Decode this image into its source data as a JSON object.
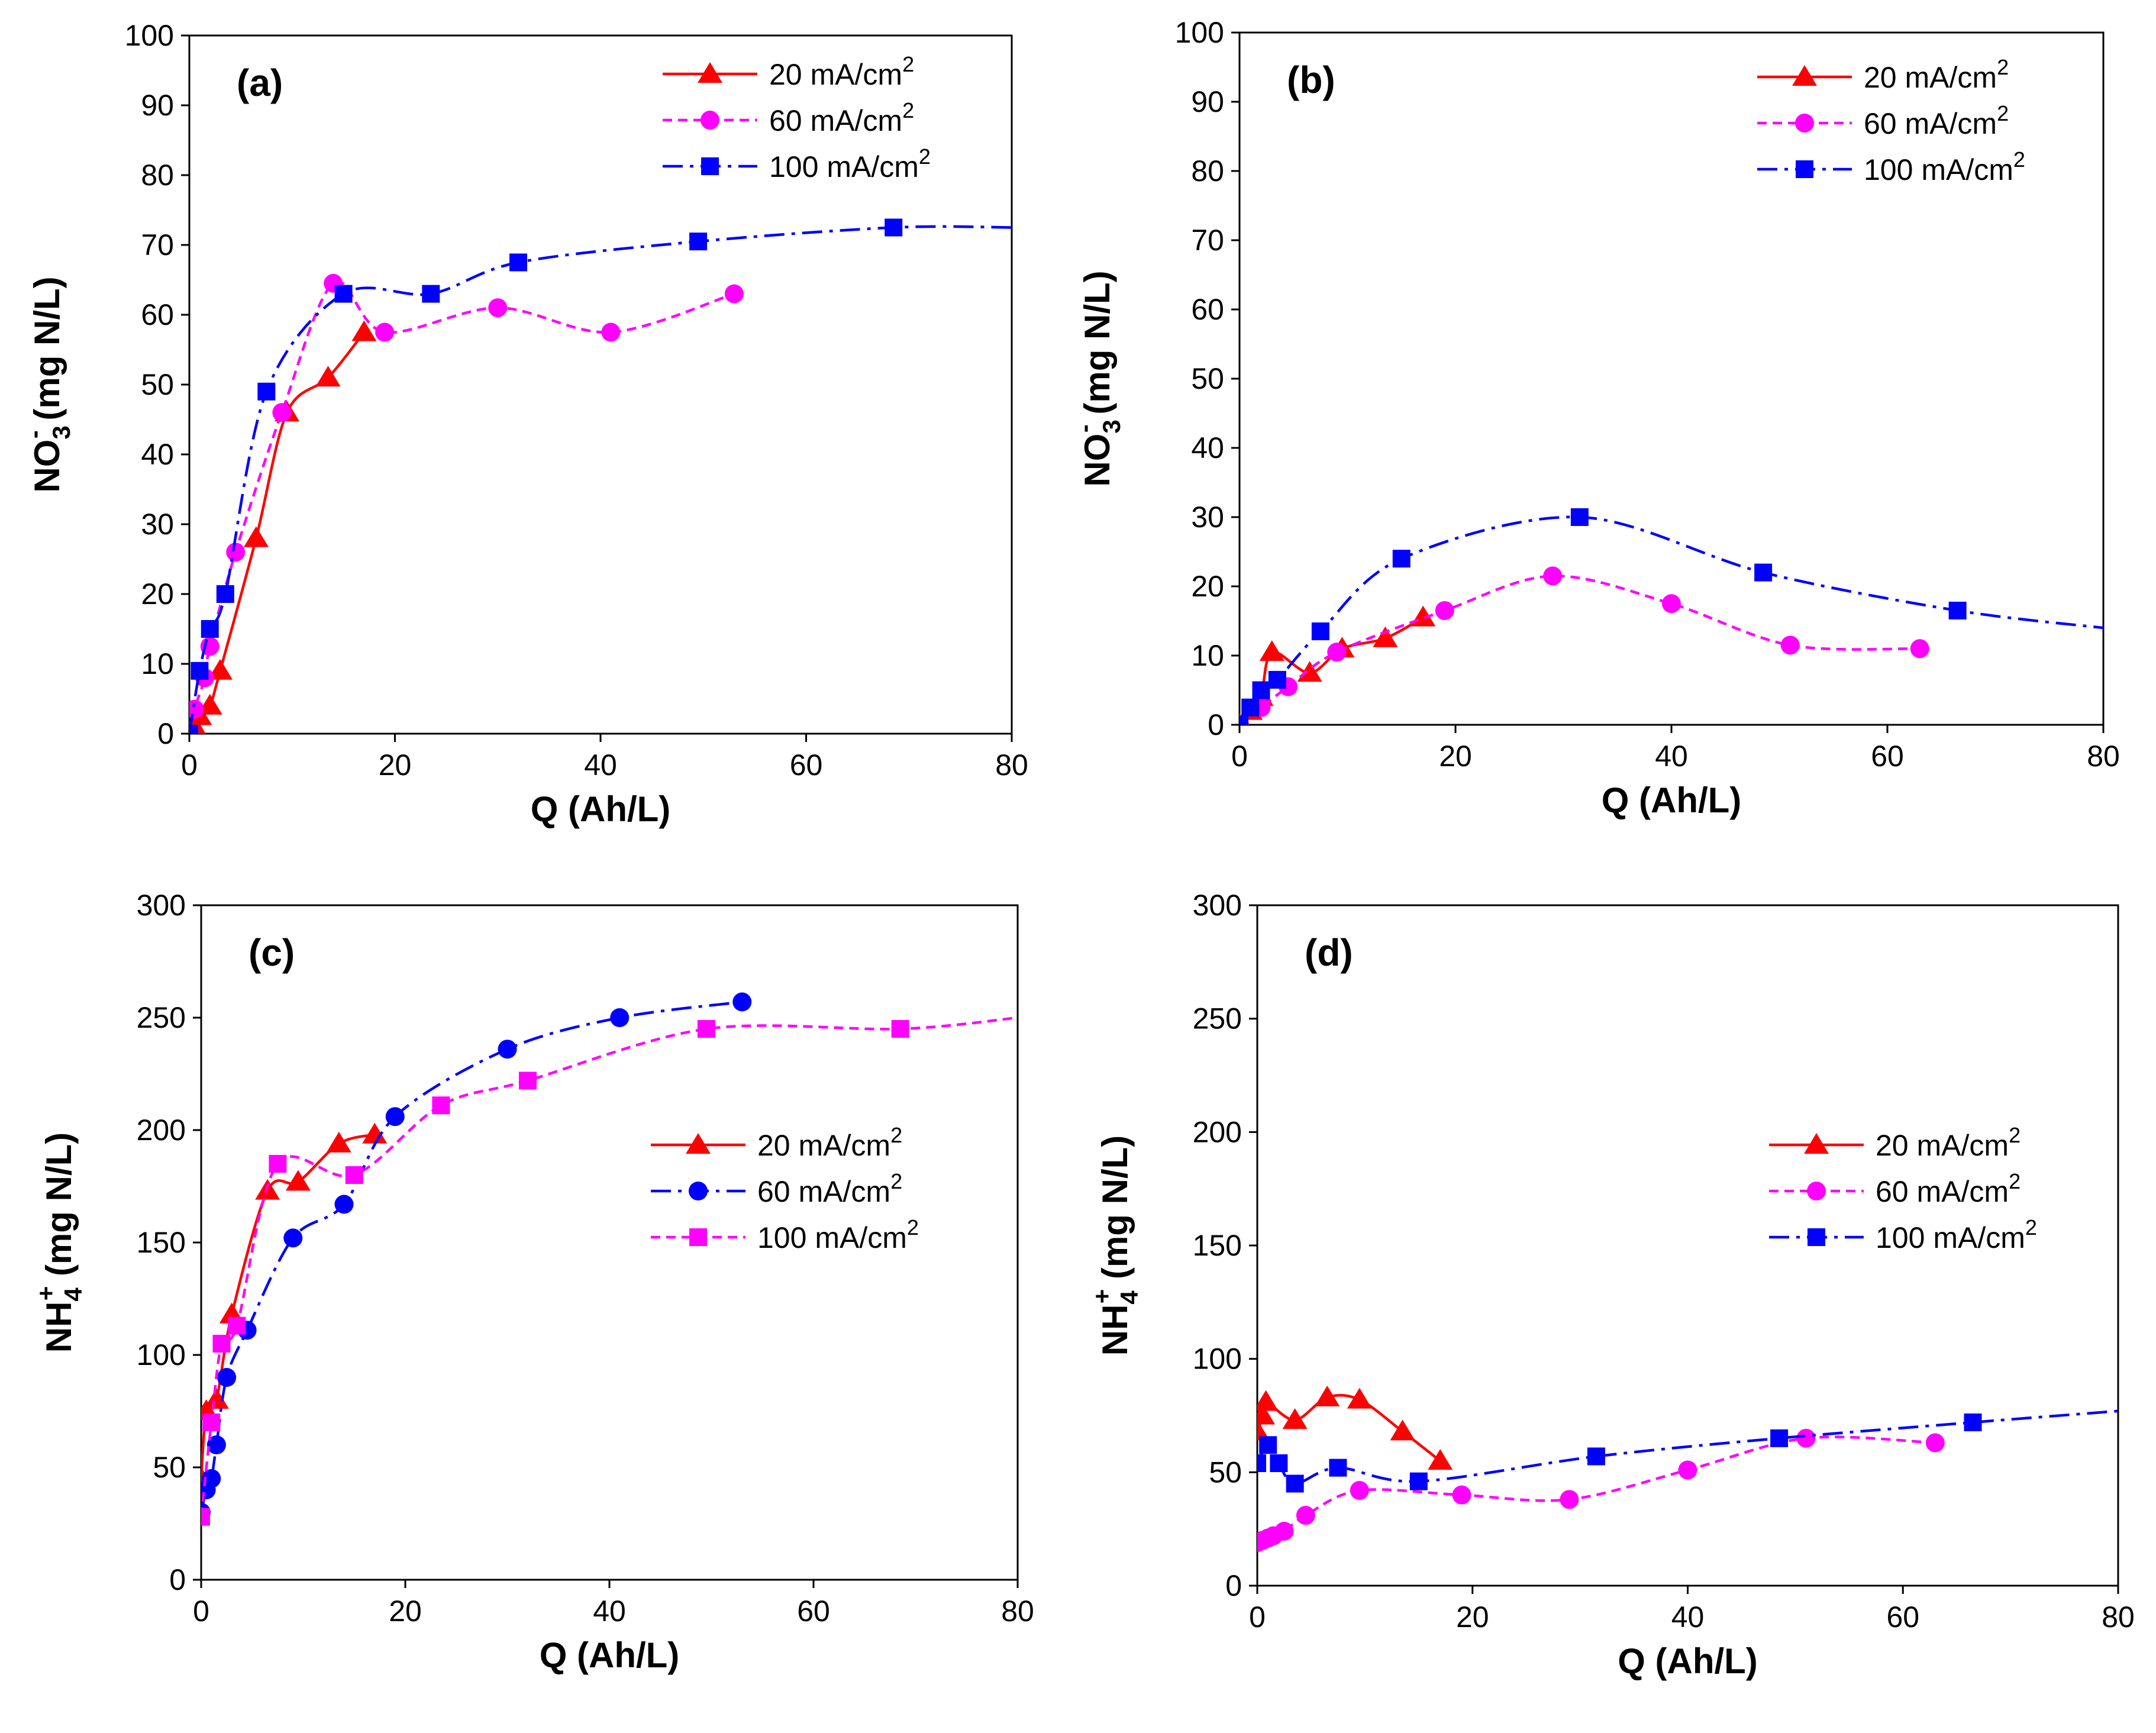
{
  "chart_data": [
    {
      "type": "line",
      "panel_label": "(a)",
      "xlabel": "Q (Ah/L)",
      "ylabel": {
        "base": "NO",
        "sub": "3",
        "sup": "-",
        "rest": " (mg N/L)"
      },
      "xlim": [
        0,
        80
      ],
      "ylim": [
        0,
        100
      ],
      "xticks": [
        0,
        20,
        40,
        60,
        80
      ],
      "yticks": [
        0,
        10,
        20,
        30,
        40,
        50,
        60,
        70,
        80,
        90,
        100
      ],
      "legend_position": "top-right",
      "series": [
        {
          "name": "20 mA/cm",
          "unit_sup": "2",
          "color": "#ff0000",
          "marker": "triangle",
          "dash": "solid",
          "x": [
            0,
            0.5,
            1.0,
            2.0,
            3.0,
            6.5,
            9.5,
            13.5,
            17.0
          ],
          "y": [
            0,
            1.0,
            2.5,
            4.0,
            9.0,
            28.0,
            46.0,
            51.0,
            57.5
          ]
        },
        {
          "name": "60 mA/cm",
          "unit_sup": "2",
          "color": "#ff00ff",
          "marker": "circle",
          "dash": "dash",
          "x": [
            0,
            0.5,
            1.5,
            2.0,
            4.5,
            9.0,
            14.0,
            19.0,
            30.0,
            41.0,
            53.0
          ],
          "y": [
            0,
            3.5,
            8.0,
            12.5,
            26.0,
            46.0,
            64.5,
            57.5,
            61.0,
            57.5,
            63.0
          ]
        },
        {
          "name": "100 mA/cm",
          "unit_sup": "2",
          "color": "#0000ff",
          "marker": "square",
          "dash": "dashdot",
          "x": [
            0,
            1.0,
            2.0,
            3.5,
            7.5,
            15.0,
            23.5,
            32.0,
            49.5,
            68.5,
            80.0
          ],
          "y": [
            0,
            9.0,
            15.0,
            20.0,
            49.0,
            63.0,
            63.0,
            67.5,
            70.5,
            72.5,
            72.5
          ]
        }
      ]
    },
    {
      "type": "line",
      "panel_label": "(b)",
      "xlabel": "Q (Ah/L)",
      "ylabel": {
        "base": "NO",
        "sub": "3",
        "sup": "-",
        "rest": " (mg N/L)"
      },
      "xlim": [
        0,
        80
      ],
      "ylim": [
        0,
        100
      ],
      "xticks": [
        0,
        20,
        40,
        60,
        80
      ],
      "yticks": [
        0,
        10,
        20,
        30,
        40,
        50,
        60,
        70,
        80,
        90,
        100
      ],
      "legend_position": "top-right",
      "series": [
        {
          "name": "20 mA/cm",
          "unit_sup": "2",
          "color": "#ff0000",
          "marker": "triangle",
          "dash": "solid",
          "x": [
            0,
            1.0,
            2.0,
            3.0,
            6.5,
            9.5,
            13.5,
            17.0
          ],
          "y": [
            0,
            2.0,
            4.0,
            10.5,
            7.5,
            11.0,
            12.5,
            15.5
          ]
        },
        {
          "name": "60 mA/cm",
          "unit_sup": "2",
          "color": "#ff00ff",
          "marker": "circle",
          "dash": "dash",
          "x": [
            0,
            2.0,
            4.5,
            9.0,
            19.0,
            29.0,
            40.0,
            51.0,
            63.0
          ],
          "y": [
            0,
            2.5,
            5.5,
            10.5,
            16.5,
            21.5,
            17.5,
            11.5,
            11.0
          ]
        },
        {
          "name": "100 mA/cm",
          "unit_sup": "2",
          "color": "#0000ff",
          "marker": "square",
          "dash": "dashdot",
          "x": [
            0,
            1.0,
            2.0,
            3.5,
            7.5,
            15.0,
            31.5,
            48.5,
            66.5,
            80.0
          ],
          "y": [
            0,
            2.5,
            5.0,
            6.5,
            13.5,
            24.0,
            30.0,
            22.0,
            16.5,
            14.0
          ]
        }
      ]
    },
    {
      "type": "line",
      "panel_label": "(c)",
      "xlabel": "Q (Ah/L)",
      "ylabel": {
        "base": "NH",
        "sub": "4",
        "sup": "+",
        "rest": " (mg N/L)"
      },
      "xlim": [
        0,
        80
      ],
      "ylim": [
        0,
        300
      ],
      "xticks": [
        0,
        20,
        40,
        60,
        80
      ],
      "yticks": [
        0,
        50,
        100,
        150,
        200,
        250,
        300
      ],
      "legend_position": "middle-right",
      "series": [
        {
          "name": "20 mA/cm",
          "unit_sup": "2",
          "color": "#ff0000",
          "marker": "triangle",
          "dash": "solid",
          "x": [
            0,
            0.5,
            1.5,
            3.0,
            6.5,
            9.5,
            13.5,
            17.0
          ],
          "y": [
            45,
            75,
            80,
            118,
            173,
            177,
            194,
            198
          ]
        },
        {
          "name": "60 mA/cm",
          "unit_sup": "2",
          "color": "#0000ff",
          "marker": "circle",
          "dash": "dashdot",
          "x": [
            0,
            0.5,
            1.0,
            1.5,
            2.5,
            4.5,
            9.0,
            14.0,
            19.0,
            30.0,
            41.0,
            53.0
          ],
          "y": [
            30,
            40,
            45,
            60,
            90,
            111,
            152,
            167,
            206,
            236,
            250,
            257
          ]
        },
        {
          "name": "100 mA/cm",
          "unit_sup": "2",
          "color": "#ff00ff",
          "marker": "square",
          "dash": "dash",
          "x": [
            0,
            1.0,
            2.0,
            3.5,
            7.5,
            15.0,
            23.5,
            32.0,
            49.5,
            68.5,
            80.0
          ],
          "y": [
            28,
            70,
            105,
            113,
            185,
            180,
            211,
            222,
            245,
            245,
            250
          ]
        }
      ]
    },
    {
      "type": "line",
      "panel_label": "(d)",
      "xlabel": "Q (Ah/L)",
      "ylabel": {
        "base": "NH",
        "sub": "4",
        "sup": "+",
        "rest": " (mg N/L)"
      },
      "xlim": [
        0,
        80
      ],
      "ylim": [
        0,
        300
      ],
      "xticks": [
        0,
        20,
        40,
        60,
        80
      ],
      "yticks": [
        0,
        50,
        100,
        150,
        200,
        250,
        300
      ],
      "legend_position": "middle-right",
      "series": [
        {
          "name": "20 mA/cm",
          "unit_sup": "2",
          "color": "#ff0000",
          "marker": "triangle",
          "dash": "solid",
          "x": [
            0,
            0.5,
            0.8,
            3.5,
            6.5,
            9.5,
            13.5,
            17.0
          ],
          "y": [
            68,
            75,
            81,
            73,
            83,
            82,
            68,
            55
          ]
        },
        {
          "name": "60 mA/cm",
          "unit_sup": "2",
          "color": "#ff00ff",
          "marker": "circle",
          "dash": "dash",
          "x": [
            0,
            0.5,
            1.0,
            1.5,
            2.5,
            4.5,
            9.5,
            19.0,
            29.0,
            40.0,
            51.0,
            63.0
          ],
          "y": [
            19,
            20,
            21,
            22,
            24,
            31,
            42,
            40,
            38,
            51,
            65,
            63
          ]
        },
        {
          "name": "100 mA/cm",
          "unit_sup": "2",
          "color": "#0000ff",
          "marker": "square",
          "dash": "dashdot",
          "x": [
            0,
            1.0,
            2.0,
            3.5,
            7.5,
            15.0,
            31.5,
            48.5,
            66.5,
            80.0
          ],
          "y": [
            54,
            62,
            54,
            45,
            52,
            46,
            57,
            65,
            72,
            77
          ]
        }
      ]
    }
  ]
}
